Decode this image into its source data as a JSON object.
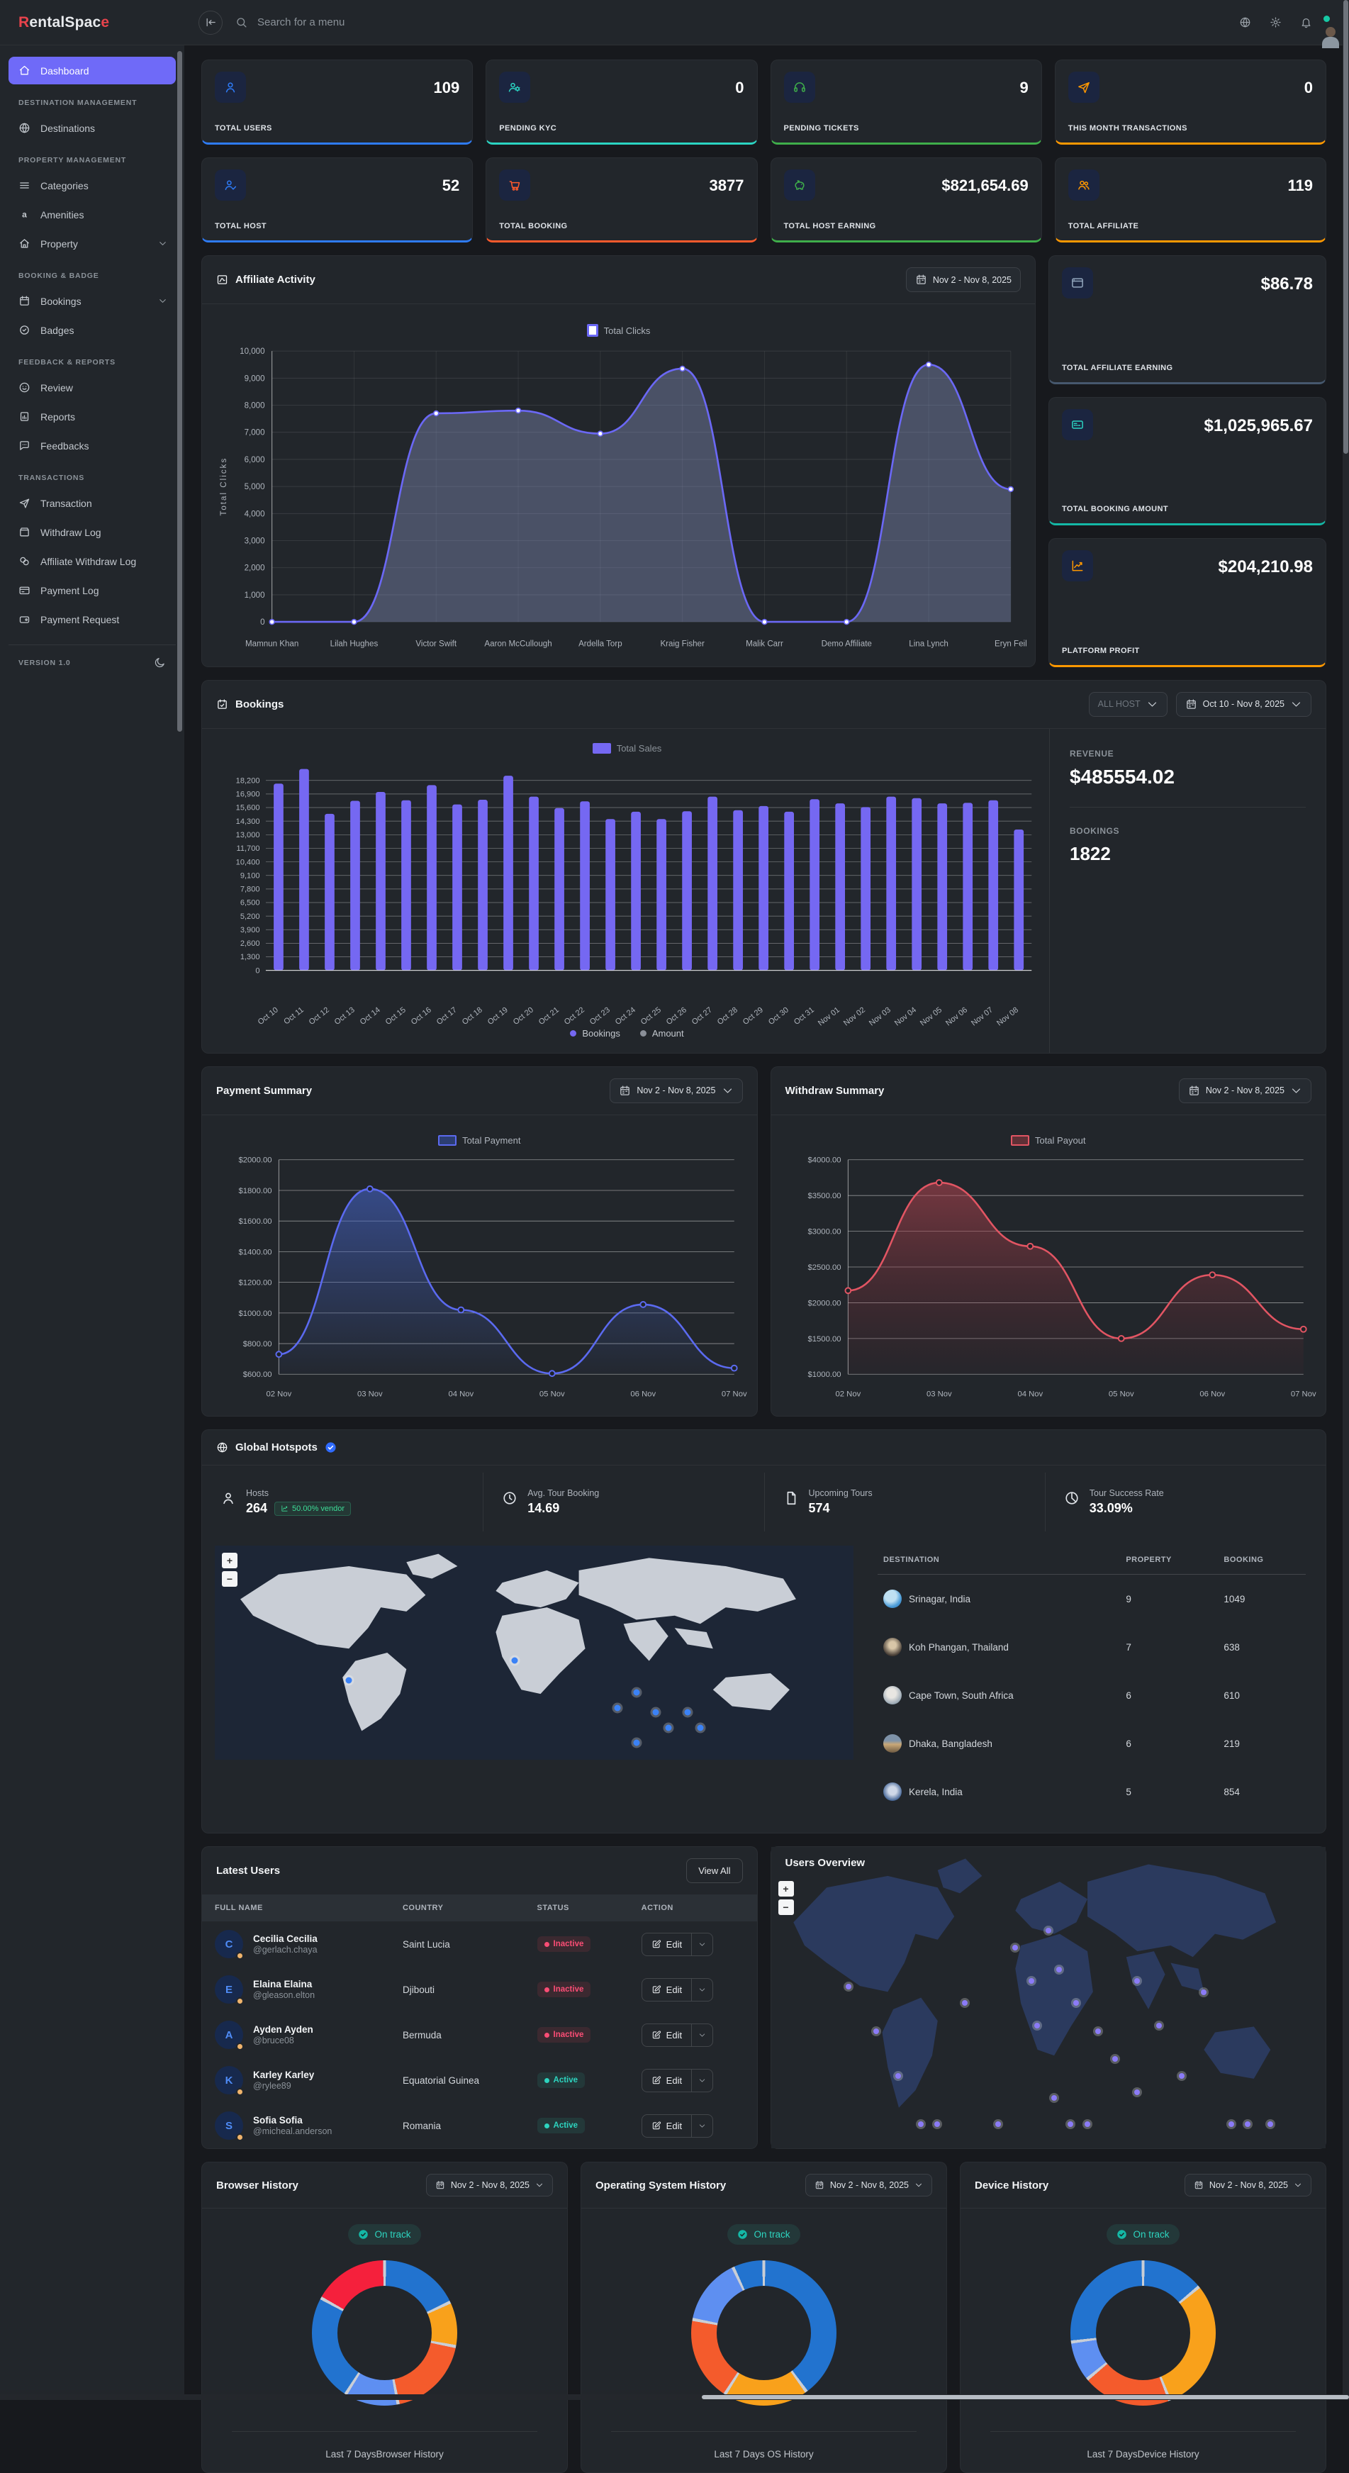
{
  "header": {
    "logo_r": "R",
    "logo_mid": "entalSpac",
    "logo_e": "e",
    "search_placeholder": "Search for a menu"
  },
  "sidebar": {
    "sections": [
      {
        "heading": "",
        "items": [
          {
            "label": "Dashboard",
            "icon": "home-icon",
            "active": true
          }
        ]
      },
      {
        "heading": "DESTINATION MANAGEMENT",
        "items": [
          {
            "label": "Destinations",
            "icon": "globe-icon"
          }
        ]
      },
      {
        "heading": "PROPERTY MANAGEMENT",
        "items": [
          {
            "label": "Categories",
            "icon": "menu-icon"
          },
          {
            "label": "Amenities",
            "icon": "letter-a-icon"
          },
          {
            "label": "Property",
            "icon": "house-icon",
            "chevron": true
          }
        ]
      },
      {
        "heading": "BOOKING & BADGE",
        "items": [
          {
            "label": "Bookings",
            "icon": "calendar-icon",
            "chevron": true
          },
          {
            "label": "Badges",
            "icon": "badge-icon"
          }
        ]
      },
      {
        "heading": "FEEDBACK & REPORTS",
        "items": [
          {
            "label": "Review",
            "icon": "smile-icon"
          },
          {
            "label": "Reports",
            "icon": "report-icon"
          },
          {
            "label": "Feedbacks",
            "icon": "chat-icon"
          }
        ]
      },
      {
        "heading": "TRANSACTIONS",
        "items": [
          {
            "label": "Transaction",
            "icon": "send-icon"
          },
          {
            "label": "Withdraw Log",
            "icon": "box-icon"
          },
          {
            "label": "Affiliate Withdraw Log",
            "icon": "coins-icon"
          },
          {
            "label": "Payment Log",
            "icon": "card-icon"
          },
          {
            "label": "Payment Request",
            "icon": "wallet-icon"
          }
        ]
      }
    ],
    "footer": {
      "version": "VERSION 1.0",
      "icon": "moon-icon"
    }
  },
  "stats": [
    {
      "label": "TOTAL USERS",
      "value": "109",
      "icon": "user-icon",
      "accent": "#2e7bf6"
    },
    {
      "label": "PENDING KYC",
      "value": "0",
      "icon": "users-gear-icon",
      "accent": "#2bd4c2"
    },
    {
      "label": "PENDING TICKETS",
      "value": "9",
      "icon": "headset-icon",
      "accent": "#3fae4a"
    },
    {
      "label": "THIS MONTH TRANSACTIONS",
      "value": "0",
      "icon": "send-icon",
      "accent": "#ff9800"
    },
    {
      "label": "TOTAL HOST",
      "value": "52",
      "icon": "user-check-icon",
      "accent": "#2e7bf6"
    },
    {
      "label": "TOTAL BOOKING",
      "value": "3877",
      "icon": "cart-icon",
      "accent": "#ff5a2c"
    },
    {
      "label": "TOTAL HOST EARNING",
      "value": "$821,654.69",
      "icon": "piggy-icon",
      "accent": "#3fae4a"
    },
    {
      "label": "TOTAL AFFILIATE",
      "value": "119",
      "icon": "users-icon",
      "accent": "#ff9800"
    }
  ],
  "right_cards": [
    {
      "label": "TOTAL AFFILIATE EARNING",
      "value": "$86.78",
      "icon": "browser-card-icon",
      "accent": "#46586e",
      "icon_color": "#93a7bd"
    },
    {
      "label": "TOTAL BOOKING AMOUNT",
      "value": "$1,025,965.67",
      "icon": "receipt-icon",
      "accent": "#14b8a6",
      "icon_color": "#2bd4c2"
    },
    {
      "label": "PLATFORM PROFIT",
      "value": "$204,210.98",
      "icon": "trend-up-icon",
      "accent": "#ff9800",
      "icon_color": "#ff9800"
    }
  ],
  "affiliate": {
    "title": "Affiliate Activity",
    "date_range": "Nov 2 - Nov 8, 2025"
  },
  "bookings": {
    "title": "Bookings",
    "host_filter": "ALL HOST",
    "date_range": "Oct 10 - Nov 8, 2025",
    "revenue_label": "REVENUE",
    "revenue": "$485554.02",
    "bookings_label": "BOOKINGS",
    "bookings": "1822",
    "legend_bottom": [
      {
        "label": "Bookings",
        "color": "#7568f2"
      },
      {
        "label": "Amount",
        "color": "#8a8f98"
      }
    ]
  },
  "payment": {
    "title": "Payment Summary",
    "date_range": "Nov 2 - Nov 8, 2025"
  },
  "withdraw": {
    "title": "Withdraw Summary",
    "date_range": "Nov 2 - Nov 8, 2025"
  },
  "hotspots": {
    "title": "Global Hotspots",
    "stats": [
      {
        "icon": "user-icon",
        "label": "Hosts",
        "value": "264",
        "badge": "50.00% vendor"
      },
      {
        "icon": "clock-icon",
        "label": "Avg. Tour Booking",
        "value": "14.69"
      },
      {
        "icon": "doc-icon",
        "label": "Upcoming Tours",
        "value": "574"
      },
      {
        "icon": "pie-icon",
        "label": "Tour Success Rate",
        "value": "33.09%"
      }
    ],
    "table": {
      "headers": [
        "DESTINATION",
        "PROPERTY",
        "BOOKING"
      ],
      "rows": [
        {
          "name": "Srinagar, India",
          "property": "9",
          "booking": "1049"
        },
        {
          "name": "Koh Phangan, Thailand",
          "property": "7",
          "booking": "638"
        },
        {
          "name": "Cape Town, South Africa",
          "property": "6",
          "booking": "610"
        },
        {
          "name": "Dhaka, Bangladesh",
          "property": "6",
          "booking": "219"
        },
        {
          "name": "Kerela, India",
          "property": "5",
          "booking": "854"
        }
      ]
    },
    "dot_color": "#3b82f6",
    "map_dots": [
      [
        21,
        34
      ],
      [
        47,
        29
      ],
      [
        63,
        41
      ],
      [
        66,
        37
      ],
      [
        69,
        42
      ],
      [
        71,
        46
      ],
      [
        74,
        42
      ],
      [
        66,
        63
      ],
      [
        76,
        46
      ]
    ]
  },
  "latest_users": {
    "title": "Latest Users",
    "view_all": "View All",
    "edit_label": "Edit",
    "headers": [
      "FULL NAME",
      "COUNTRY",
      "STATUS",
      "ACTION"
    ],
    "rows": [
      {
        "initial": "C",
        "name": "Cecilia Cecilia",
        "handle": "@gerlach.chaya",
        "country": "Saint Lucia",
        "status": "Inactive"
      },
      {
        "initial": "E",
        "name": "Elaina Elaina",
        "handle": "@gleason.elton",
        "country": "Djibouti",
        "status": "Inactive"
      },
      {
        "initial": "A",
        "name": "Ayden Ayden",
        "handle": "@bruce08",
        "country": "Bermuda",
        "status": "Inactive"
      },
      {
        "initial": "K",
        "name": "Karley Karley",
        "handle": "@rylee89",
        "country": "Equatorial Guinea",
        "status": "Active"
      },
      {
        "initial": "S",
        "name": "Sofia Sofia",
        "handle": "@micheal.anderson",
        "country": "Romania",
        "status": "Active"
      }
    ]
  },
  "users_overview": {
    "title": "Users Overview",
    "dot_color": "#8b7bf7",
    "map_dots": [
      [
        14,
        25
      ],
      [
        19,
        33
      ],
      [
        23,
        41
      ],
      [
        27,
        62
      ],
      [
        30,
        72
      ],
      [
        44,
        18
      ],
      [
        47,
        24
      ],
      [
        50,
        15
      ],
      [
        52,
        22
      ],
      [
        55,
        28
      ],
      [
        48,
        32
      ],
      [
        51,
        45
      ],
      [
        54,
        55
      ],
      [
        57,
        63
      ],
      [
        59,
        33
      ],
      [
        62,
        38
      ],
      [
        66,
        24
      ],
      [
        70,
        32
      ],
      [
        74,
        41
      ],
      [
        78,
        26
      ],
      [
        66,
        44
      ],
      [
        83,
        67
      ],
      [
        86,
        61
      ],
      [
        35,
        28
      ],
      [
        41,
        57
      ],
      [
        90,
        78
      ]
    ]
  },
  "donut_cards": [
    {
      "title": "Browser History",
      "date_range": "Nov 2 - Nov 8, 2025",
      "badge": "On track",
      "caption": "Last 7 DaysBrowser History",
      "chart_id": "browser"
    },
    {
      "title": "Operating System History",
      "date_range": "Nov 2 - Nov 8, 2025",
      "badge": "On track",
      "caption": "Last 7 Days OS History",
      "chart_id": "os"
    },
    {
      "title": "Device History",
      "date_range": "Nov 2 - Nov 8, 2025",
      "badge": "On track",
      "caption": "Last 7 DaysDevice History",
      "chart_id": "device"
    }
  ],
  "chart_data": [
    {
      "id": "affiliate",
      "type": "line",
      "legend": "Total Clicks",
      "ylabel": "Total Clicks",
      "categories": [
        "Mamnun Khan",
        "Lilah Hughes",
        "Victor Swift",
        "Aaron McCullough",
        "Ardella Torp",
        "Kraig Fisher",
        "Malik Carr",
        "Demo Affiliate",
        "Lina Lynch",
        "Eryn Feil"
      ],
      "values": [
        0,
        0,
        7700,
        7800,
        6950,
        9350,
        0,
        0,
        9500,
        4900
      ],
      "ylim": [
        0,
        10000
      ],
      "ytick_step": 1000,
      "color": "#6b68f5",
      "grid": "both"
    },
    {
      "id": "bookings",
      "type": "bar",
      "legend": "Total Sales",
      "categories": [
        "Oct 10",
        "Oct 11",
        "Oct 12",
        "Oct 13",
        "Oct 14",
        "Oct 15",
        "Oct 16",
        "Oct 17",
        "Oct 18",
        "Oct 19",
        "Oct 20",
        "Oct 21",
        "Oct 22",
        "Oct 23",
        "Oct 24",
        "Oct 25",
        "Oct 26",
        "Oct 27",
        "Oct 28",
        "Oct 29",
        "Oct 30",
        "Oct 31",
        "Nov 01",
        "Nov 02",
        "Nov 03",
        "Nov 04",
        "Nov 05",
        "Nov 06",
        "Nov 07",
        "Nov 08"
      ],
      "values": [
        17900,
        19300,
        15000,
        16250,
        17100,
        16300,
        17750,
        15900,
        16350,
        18650,
        16650,
        15550,
        16200,
        14500,
        15200,
        14500,
        15250,
        16650,
        15350,
        15750,
        15200,
        16400,
        16000,
        15650,
        16650,
        16500,
        16000,
        16050,
        16300,
        13500
      ],
      "ylim": [
        0,
        19500
      ],
      "ymax_tick": 18200,
      "ytick_step": 1300,
      "color": "#7568f2"
    },
    {
      "id": "payment",
      "type": "line",
      "legend": "Total Payment",
      "categories": [
        "02 Nov",
        "03 Nov",
        "04 Nov",
        "05 Nov",
        "06 Nov",
        "07 Nov"
      ],
      "values": [
        730,
        1810,
        1020,
        605,
        1055,
        640
      ],
      "ylim": [
        600,
        2000
      ],
      "ytick_step": 200,
      "color": "#5b6af0",
      "money": true,
      "grid": "h"
    },
    {
      "id": "withdraw",
      "type": "line",
      "legend": "Total Payout",
      "categories": [
        "02 Nov",
        "03 Nov",
        "04 Nov",
        "05 Nov",
        "06 Nov",
        "07 Nov"
      ],
      "values": [
        2170,
        3680,
        2790,
        1500,
        2390,
        1630
      ],
      "ylim": [
        1000,
        4000
      ],
      "ytick_step": 500,
      "color": "#e25563",
      "money": true,
      "grid": "h"
    },
    {
      "id": "browser",
      "type": "donut",
      "segments": [
        {
          "value": 18,
          "color": "#2273cf"
        },
        {
          "value": 10,
          "color": "#f9a11b"
        },
        {
          "value": 19,
          "color": "#f45b2c"
        },
        {
          "value": 12,
          "color": "#5e8ff1"
        },
        {
          "value": 24,
          "color": "#2273cf"
        },
        {
          "value": 17,
          "color": "#f5203c"
        }
      ]
    },
    {
      "id": "os",
      "type": "donut",
      "segments": [
        {
          "value": 40,
          "color": "#2273cf"
        },
        {
          "value": 19,
          "color": "#f9a11b"
        },
        {
          "value": 19,
          "color": "#f45b2c"
        },
        {
          "value": 15,
          "color": "#5e8ff1"
        },
        {
          "value": 7,
          "color": "#2273cf"
        }
      ]
    },
    {
      "id": "device",
      "type": "donut",
      "segments": [
        {
          "value": 14,
          "color": "#2273cf"
        },
        {
          "value": 30,
          "color": "#f9a11b"
        },
        {
          "value": 20,
          "color": "#f45b2c"
        },
        {
          "value": 9,
          "color": "#5e8ff1"
        },
        {
          "value": 27,
          "color": "#2273cf"
        }
      ]
    }
  ]
}
